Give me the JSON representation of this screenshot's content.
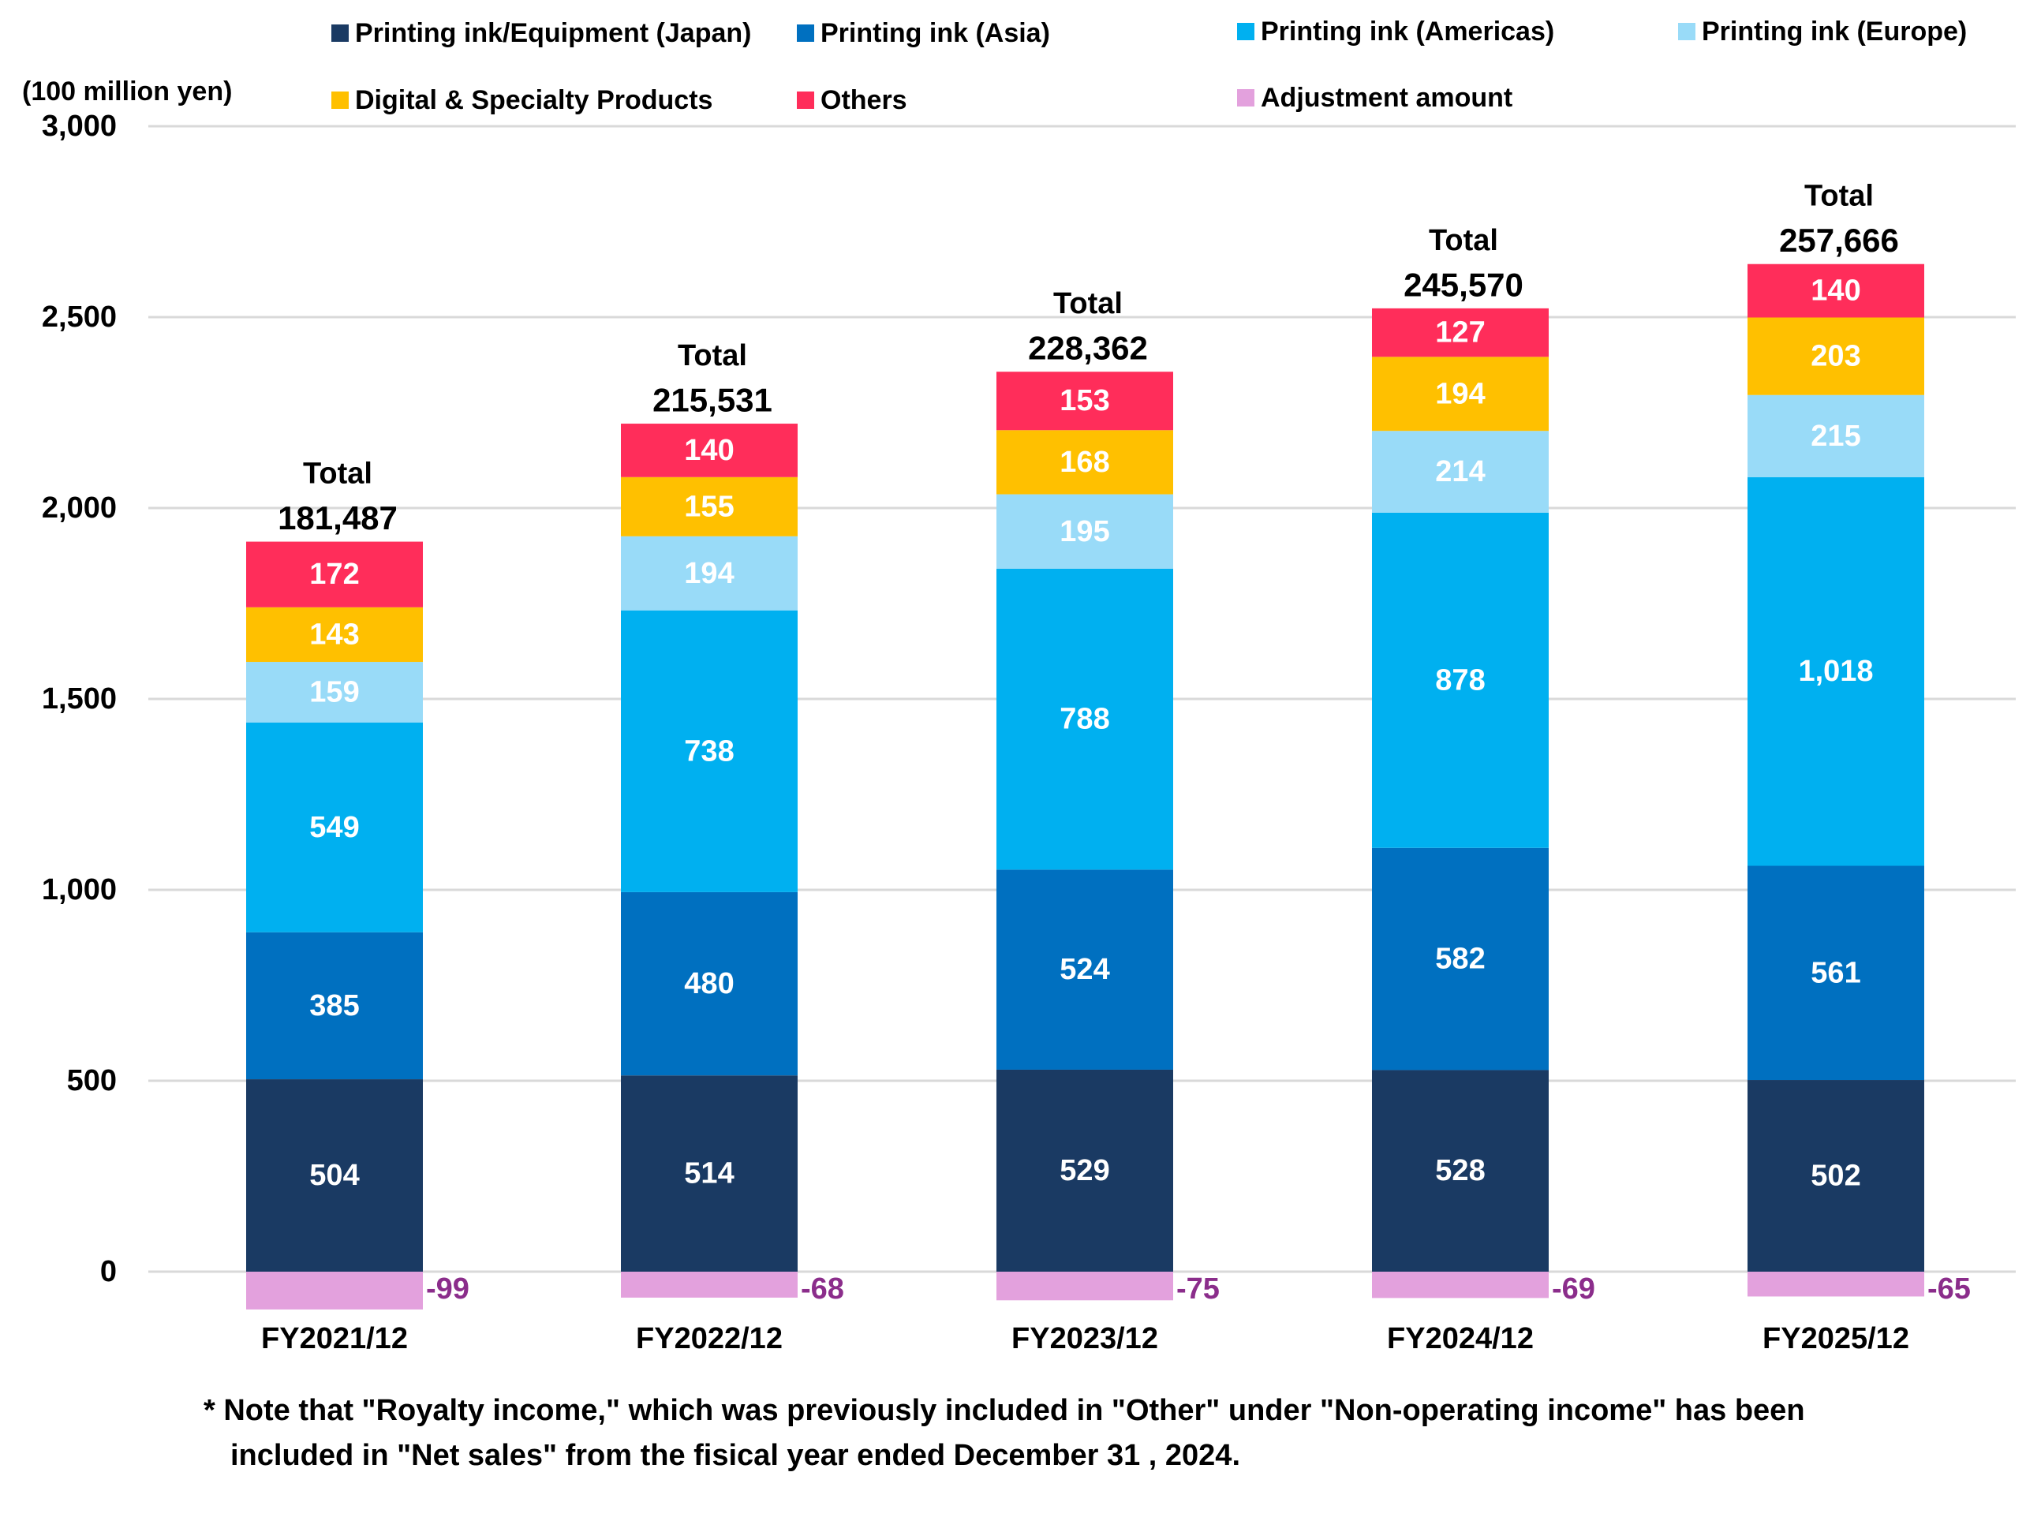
{
  "chart_data": {
    "type": "bar",
    "stacked": true,
    "unit_label": "(100 million yen)",
    "categories": [
      "FY2021/12",
      "FY2022/12",
      "FY2023/12",
      "FY2024/12",
      "FY2025/12"
    ],
    "series": [
      {
        "name": "Printing ink/Equipment (Japan)",
        "color": "#1a3a63",
        "values": [
          504,
          514,
          529,
          528,
          502
        ],
        "labels": [
          "504",
          "514",
          "529",
          "528",
          "502"
        ]
      },
      {
        "name": "Printing ink (Asia)",
        "color": "#0070c0",
        "values": [
          385,
          480,
          524,
          582,
          561
        ],
        "labels": [
          "385",
          "480",
          "524",
          "582",
          "561"
        ]
      },
      {
        "name": "Printing ink (Americas)",
        "color": "#00b0f0",
        "values": [
          549,
          738,
          788,
          878,
          1018
        ],
        "labels": [
          "549",
          "738",
          "788",
          "878",
          "1,018"
        ]
      },
      {
        "name": "Printing ink (Europe)",
        "color": "#99dbf8",
        "values": [
          159,
          194,
          195,
          214,
          215
        ],
        "labels": [
          "159",
          "194",
          "195",
          "214",
          "215"
        ]
      },
      {
        "name": "Digital & Specialty Products",
        "color": "#ffc000",
        "values": [
          143,
          155,
          168,
          194,
          203
        ],
        "labels": [
          "143",
          "155",
          "168",
          "194",
          "203"
        ]
      },
      {
        "name": "Others",
        "color": "#ff2d5a",
        "values": [
          172,
          140,
          153,
          127,
          140
        ],
        "labels": [
          "172",
          "140",
          "153",
          "127",
          "140"
        ]
      },
      {
        "name": "Adjustment amount",
        "color": "#e3a1dd",
        "values": [
          -99,
          -68,
          -75,
          -69,
          -65
        ],
        "labels": [
          "-99",
          "-68",
          "-75",
          "-69",
          "-65"
        ]
      }
    ],
    "totals": {
      "label": "Total",
      "values": [
        "181,487",
        "215,531",
        "228,362",
        "245,570",
        "257,666"
      ]
    },
    "ylim": [
      0,
      3000
    ],
    "yticks": [
      0,
      500,
      1000,
      1500,
      2000,
      2500,
      3000
    ],
    "ytick_labels": [
      "0",
      "500",
      "1,000",
      "1,500",
      "2,000",
      "2,500",
      "3,000"
    ],
    "grid": true,
    "legend_position": "top",
    "colors": {
      "segment_label": "#ffffff",
      "adjustment_label": "#8b2d8b",
      "grid": "#d9d9d9",
      "text": "#000000"
    }
  },
  "footnote": {
    "line1": "* Note that \"Royalty income,\" which was previously included in \"Other\" under \"Non-operating income\" has been",
    "line2": "included in \"Net sales\" from the fisical year ended December 31 , 2024."
  }
}
